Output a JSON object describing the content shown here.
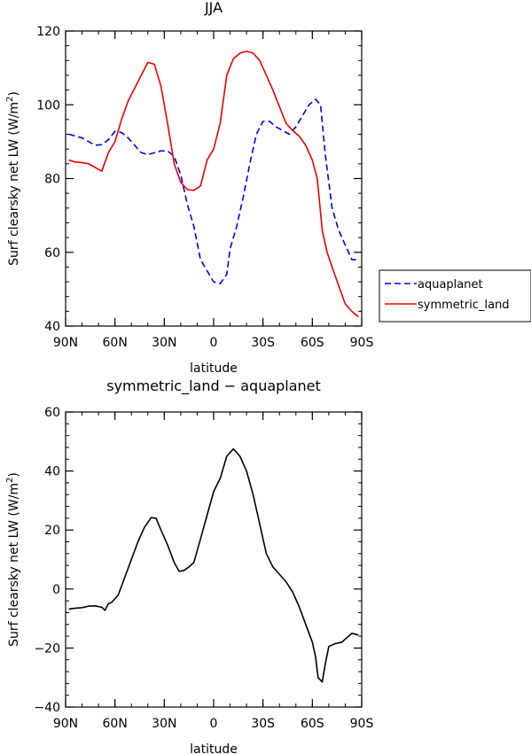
{
  "chart_data": [
    {
      "type": "line",
      "title": "JJA",
      "xlabel": "latitude",
      "ylabel": "Surf clearsky net LW (W/m",
      "ylabel_sup": "2",
      "ylabel_close": ")",
      "xlim": [
        90,
        -90
      ],
      "ylim": [
        40,
        120
      ],
      "xticks": [
        {
          "value": 90,
          "label": "90N"
        },
        {
          "value": 60,
          "label": "60N"
        },
        {
          "value": 30,
          "label": "30N"
        },
        {
          "value": 0,
          "label": "0"
        },
        {
          "value": -30,
          "label": "30S"
        },
        {
          "value": -60,
          "label": "60S"
        },
        {
          "value": -90,
          "label": "90S"
        }
      ],
      "yticks": [
        {
          "value": 40,
          "label": "40"
        },
        {
          "value": 60,
          "label": "60"
        },
        {
          "value": 80,
          "label": "80"
        },
        {
          "value": 100,
          "label": "100"
        },
        {
          "value": 120,
          "label": "120"
        }
      ],
      "legend_position": "right",
      "series": [
        {
          "name": "aquaplanet",
          "color": "#0000ee",
          "dash": true,
          "points": [
            [
              88,
              92
            ],
            [
              84,
              91.5
            ],
            [
              80,
              91
            ],
            [
              76,
              90
            ],
            [
              72,
              89
            ],
            [
              68,
              89.2
            ],
            [
              64,
              90.5
            ],
            [
              60,
              92.8
            ],
            [
              56,
              92.5
            ],
            [
              52,
              91
            ],
            [
              48,
              89
            ],
            [
              44,
              87
            ],
            [
              40,
              86.5
            ],
            [
              36,
              87
            ],
            [
              32,
              87.5
            ],
            [
              28,
              87.5
            ],
            [
              24,
              86
            ],
            [
              20,
              81
            ],
            [
              16,
              73
            ],
            [
              12,
              67
            ],
            [
              8,
              58
            ],
            [
              4,
              55
            ],
            [
              0,
              52
            ],
            [
              -4,
              51.5
            ],
            [
              -8,
              54
            ],
            [
              -10,
              61
            ],
            [
              -14,
              67
            ],
            [
              -18,
              75
            ],
            [
              -22,
              84
            ],
            [
              -26,
              92
            ],
            [
              -30,
              95.5
            ],
            [
              -34,
              95.5
            ],
            [
              -38,
              94
            ],
            [
              -42,
              93
            ],
            [
              -46,
              92
            ],
            [
              -50,
              94
            ],
            [
              -54,
              97
            ],
            [
              -58,
              100
            ],
            [
              -62,
              101.5
            ],
            [
              -65,
              100
            ],
            [
              -68,
              86
            ],
            [
              -72,
              72
            ],
            [
              -76,
              66
            ],
            [
              -80,
              62
            ],
            [
              -84,
              58
            ],
            [
              -88,
              58
            ]
          ]
        },
        {
          "name": "symmetric_land",
          "color": "#ee0000",
          "dash": false,
          "points": [
            [
              88,
              85
            ],
            [
              84,
              84.5
            ],
            [
              80,
              84.3
            ],
            [
              76,
              84
            ],
            [
              72,
              83
            ],
            [
              68,
              82
            ],
            [
              64,
              87
            ],
            [
              60,
              90
            ],
            [
              56,
              96
            ],
            [
              52,
              101
            ],
            [
              48,
              104.5
            ],
            [
              44,
              108
            ],
            [
              40,
              111.5
            ],
            [
              36,
              111
            ],
            [
              32,
              105
            ],
            [
              28,
              95
            ],
            [
              24,
              84
            ],
            [
              20,
              79
            ],
            [
              16,
              77
            ],
            [
              12,
              76.8
            ],
            [
              8,
              78
            ],
            [
              4,
              85
            ],
            [
              0,
              88
            ],
            [
              -4,
              95
            ],
            [
              -8,
              108
            ],
            [
              -12,
              112.5
            ],
            [
              -16,
              114
            ],
            [
              -20,
              114.5
            ],
            [
              -24,
              114
            ],
            [
              -28,
              112
            ],
            [
              -32,
              108
            ],
            [
              -36,
              104
            ],
            [
              -40,
              99.5
            ],
            [
              -44,
              95
            ],
            [
              -48,
              93
            ],
            [
              -52,
              91.5
            ],
            [
              -56,
              89
            ],
            [
              -60,
              85
            ],
            [
              -63,
              80
            ],
            [
              -66,
              66
            ],
            [
              -69,
              60
            ],
            [
              -72,
              56
            ],
            [
              -76,
              51
            ],
            [
              -80,
              46
            ],
            [
              -84,
              44
            ],
            [
              -88,
              42.5
            ]
          ]
        }
      ]
    },
    {
      "type": "line",
      "title": "symmetric_land − aquaplanet",
      "xlabel": "latitude",
      "ylabel": "Surf clearsky net LW (W/m",
      "ylabel_sup": "2",
      "ylabel_close": ")",
      "xlim": [
        90,
        -90
      ],
      "ylim": [
        -40,
        60
      ],
      "xticks": [
        {
          "value": 90,
          "label": "90N"
        },
        {
          "value": 60,
          "label": "60N"
        },
        {
          "value": 30,
          "label": "30N"
        },
        {
          "value": 0,
          "label": "0"
        },
        {
          "value": -30,
          "label": "30S"
        },
        {
          "value": -60,
          "label": "60S"
        },
        {
          "value": -90,
          "label": "90S"
        }
      ],
      "yticks": [
        {
          "value": -40,
          "label": "−40"
        },
        {
          "value": -20,
          "label": "−20"
        },
        {
          "value": 0,
          "label": "0"
        },
        {
          "value": 20,
          "label": "20"
        },
        {
          "value": 40,
          "label": "40"
        },
        {
          "value": 60,
          "label": "60"
        }
      ],
      "series": [
        {
          "color": "#000000",
          "dash": false,
          "points": [
            [
              88,
              -6.8
            ],
            [
              84,
              -6.5
            ],
            [
              80,
              -6.3
            ],
            [
              76,
              -5.8
            ],
            [
              72,
              -5.7
            ],
            [
              68,
              -6.2
            ],
            [
              66,
              -7.2
            ],
            [
              64,
              -5
            ],
            [
              62,
              -4.5
            ],
            [
              58,
              -2
            ],
            [
              54,
              4
            ],
            [
              50,
              10
            ],
            [
              46,
              16
            ],
            [
              42,
              21
            ],
            [
              38,
              24.2
            ],
            [
              35,
              24
            ],
            [
              32,
              20
            ],
            [
              28,
              15
            ],
            [
              24,
              9
            ],
            [
              21,
              6
            ],
            [
              18,
              6.3
            ],
            [
              15,
              7.5
            ],
            [
              12,
              9
            ],
            [
              8,
              17
            ],
            [
              4,
              25
            ],
            [
              0,
              33
            ],
            [
              -4,
              37.5
            ],
            [
              -8,
              45
            ],
            [
              -12,
              47.5
            ],
            [
              -16,
              45
            ],
            [
              -20,
              40
            ],
            [
              -24,
              32
            ],
            [
              -28,
              22
            ],
            [
              -32,
              12
            ],
            [
              -36,
              7.5
            ],
            [
              -40,
              5
            ],
            [
              -44,
              2.5
            ],
            [
              -48,
              -1
            ],
            [
              -52,
              -6
            ],
            [
              -56,
              -12
            ],
            [
              -60,
              -18
            ],
            [
              -62,
              -23
            ],
            [
              -63.5,
              -30
            ],
            [
              -66,
              -31.5
            ],
            [
              -68,
              -25
            ],
            [
              -70,
              -19.5
            ],
            [
              -74,
              -18.5
            ],
            [
              -78,
              -18
            ],
            [
              -84,
              -15
            ],
            [
              -88,
              -15.6
            ]
          ]
        }
      ]
    }
  ]
}
